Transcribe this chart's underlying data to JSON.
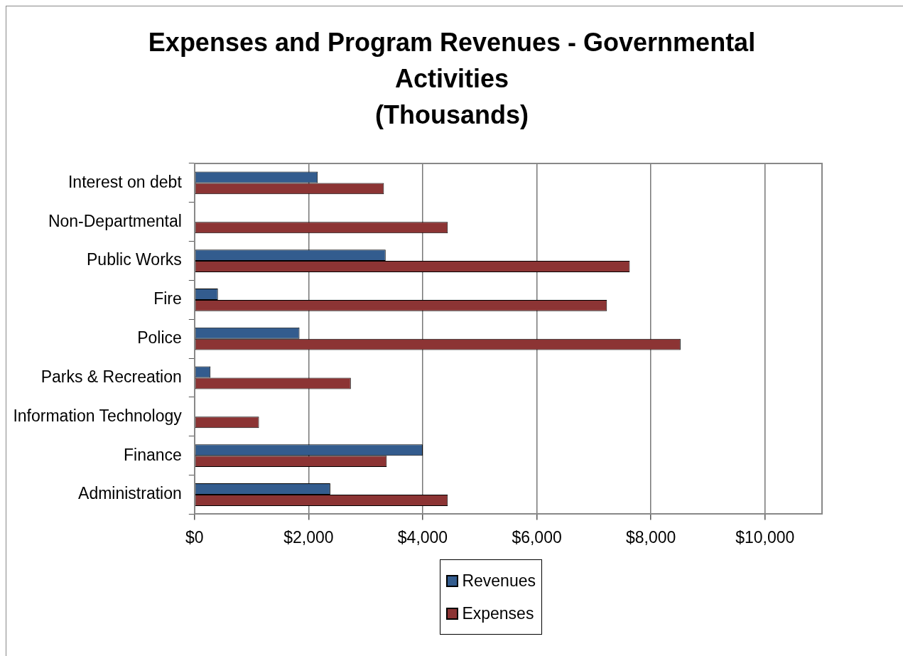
{
  "chart_data": {
    "type": "bar",
    "title": "Expenses and Program Revenues - Governmental Activities",
    "subtitle": "(Thousands)",
    "orientation": "horizontal",
    "categories": [
      "Interest on debt",
      "Non-Departmental",
      "Public Works",
      "Fire",
      "Police",
      "Parks & Recreation",
      "Information Technology",
      "Finance",
      "Administration"
    ],
    "series": [
      {
        "name": "Revenues",
        "color": "#335c8e",
        "values": [
          2160,
          null,
          3350,
          410,
          1840,
          280,
          null,
          4000,
          2380
        ]
      },
      {
        "name": "Expenses",
        "color": "#8c3434",
        "values": [
          3320,
          4440,
          7630,
          7230,
          8520,
          2740,
          1130,
          3370,
          4440
        ]
      }
    ],
    "xlim": [
      0,
      11000
    ],
    "xticks": [
      {
        "value": 0,
        "label": "$0"
      },
      {
        "value": 2000,
        "label": "$2,000"
      },
      {
        "value": 4000,
        "label": "$4,000"
      },
      {
        "value": 6000,
        "label": "$6,000"
      },
      {
        "value": 8000,
        "label": "$8,000"
      },
      {
        "value": 10000,
        "label": "$10,000"
      }
    ],
    "grid": "x",
    "legend": "bottom"
  }
}
